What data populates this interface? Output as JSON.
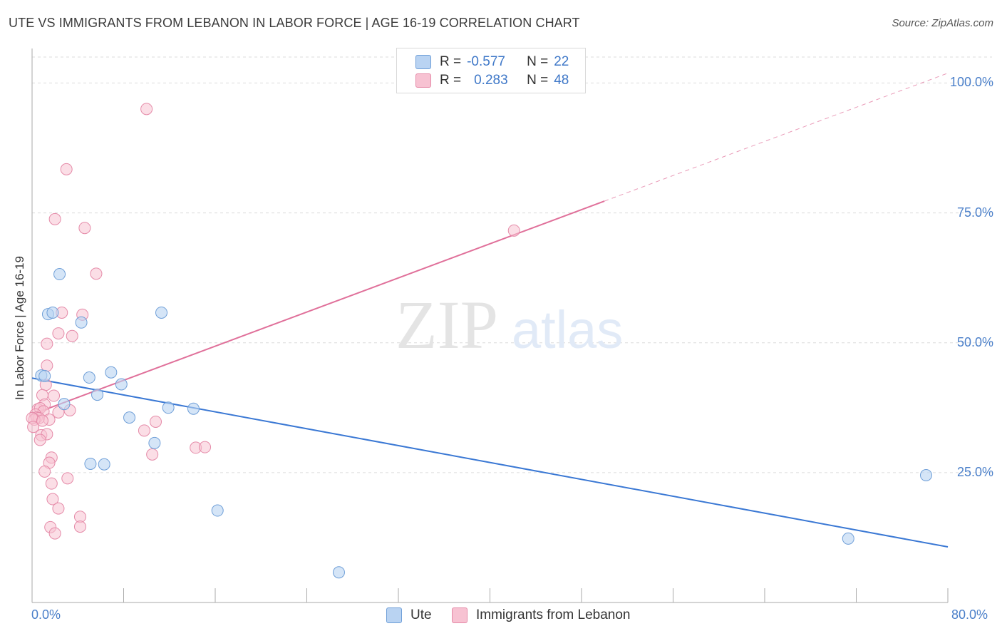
{
  "title": "UTE VS IMMIGRANTS FROM LEBANON IN LABOR FORCE | AGE 16-19 CORRELATION CHART",
  "source": "Source: ZipAtlas.com",
  "watermark": {
    "zip": "ZIP",
    "atlas": "atlas"
  },
  "legend": {
    "r_label": "R =",
    "n_label": "N =",
    "rows": [
      {
        "name": "Ute",
        "r": "-0.577",
        "n": "22"
      },
      {
        "name": "Immigrants from Lebanon",
        "r": "0.283",
        "n": "48"
      }
    ]
  },
  "colors": {
    "ute_fill": "#b9d3f2",
    "ute_stroke": "#6f9fd8",
    "ute_line": "#3a78d4",
    "leb_fill": "#f7c2d2",
    "leb_stroke": "#e58aa8",
    "leb_line": "#e0709a",
    "axis_text": "#4a7fc9",
    "grid": "#dcdcdc"
  },
  "chart_data": {
    "type": "scatter",
    "title": "UTE VS IMMIGRANTS FROM LEBANON IN LABOR FORCE | AGE 16-19 CORRELATION CHART",
    "xlabel": "",
    "ylabel": "In Labor Force | Age 16-19",
    "xlim": [
      0,
      80
    ],
    "ylim": [
      0,
      105
    ],
    "x_tick_labels": [
      "0.0%",
      "80.0%"
    ],
    "y_ticks": [
      25,
      50,
      75,
      100
    ],
    "y_tick_labels": [
      "25.0%",
      "50.0%",
      "75.0%",
      "100.0%"
    ],
    "grid": true,
    "legend_position": "top-center",
    "series": [
      {
        "name": "Ute",
        "points": [
          [
            0.8,
            43.7
          ],
          [
            2.4,
            63.2
          ],
          [
            1.4,
            55.5
          ],
          [
            1.8,
            55.8
          ],
          [
            4.3,
            53.9
          ],
          [
            1.1,
            43.6
          ],
          [
            2.8,
            38.2
          ],
          [
            5.0,
            43.3
          ],
          [
            6.9,
            44.3
          ],
          [
            5.7,
            40.0
          ],
          [
            7.8,
            42.0
          ],
          [
            11.3,
            55.8
          ],
          [
            8.5,
            35.6
          ],
          [
            11.9,
            37.5
          ],
          [
            14.1,
            37.3
          ],
          [
            10.7,
            30.7
          ],
          [
            5.1,
            26.7
          ],
          [
            6.3,
            26.6
          ],
          [
            16.2,
            17.7
          ],
          [
            26.8,
            5.8
          ],
          [
            78.1,
            24.5
          ],
          [
            71.3,
            12.3
          ]
        ],
        "trend": {
          "x0": 0,
          "y0": 43.2,
          "x1": 80,
          "y1": 10.7
        }
      },
      {
        "name": "Immigrants from Lebanon",
        "points": [
          [
            10.0,
            95.0
          ],
          [
            3.0,
            83.4
          ],
          [
            2.0,
            73.8
          ],
          [
            4.6,
            72.1
          ],
          [
            42.1,
            71.6
          ],
          [
            5.6,
            63.3
          ],
          [
            2.6,
            55.8
          ],
          [
            4.4,
            55.4
          ],
          [
            2.3,
            51.8
          ],
          [
            3.5,
            51.3
          ],
          [
            1.3,
            49.8
          ],
          [
            1.3,
            45.6
          ],
          [
            1.2,
            41.9
          ],
          [
            1.9,
            39.8
          ],
          [
            0.9,
            39.9
          ],
          [
            1.1,
            38.1
          ],
          [
            0.5,
            37.2
          ],
          [
            0.7,
            37.4
          ],
          [
            1.0,
            36.8
          ],
          [
            2.3,
            36.6
          ],
          [
            3.3,
            37.0
          ],
          [
            0.3,
            36.2
          ],
          [
            0.4,
            35.6
          ],
          [
            0.6,
            35.5
          ],
          [
            0.2,
            35.2
          ],
          [
            0.0,
            35.5
          ],
          [
            1.5,
            35.2
          ],
          [
            10.8,
            34.8
          ],
          [
            0.1,
            33.8
          ],
          [
            0.8,
            32.2
          ],
          [
            1.3,
            32.4
          ],
          [
            0.7,
            31.3
          ],
          [
            9.8,
            33.1
          ],
          [
            14.3,
            29.8
          ],
          [
            15.1,
            29.9
          ],
          [
            10.5,
            28.5
          ],
          [
            1.7,
            27.9
          ],
          [
            1.5,
            26.9
          ],
          [
            1.1,
            25.2
          ],
          [
            3.1,
            23.9
          ],
          [
            1.7,
            22.9
          ],
          [
            1.8,
            19.9
          ],
          [
            2.3,
            18.1
          ],
          [
            4.2,
            16.5
          ],
          [
            1.6,
            14.5
          ],
          [
            4.2,
            14.6
          ],
          [
            2.0,
            13.3
          ],
          [
            0.9,
            35.0
          ]
        ],
        "trend": {
          "x0": 0,
          "y0": 36.2,
          "x1": 80,
          "y1": 101.9,
          "solid_until_x": 50
        }
      }
    ]
  }
}
